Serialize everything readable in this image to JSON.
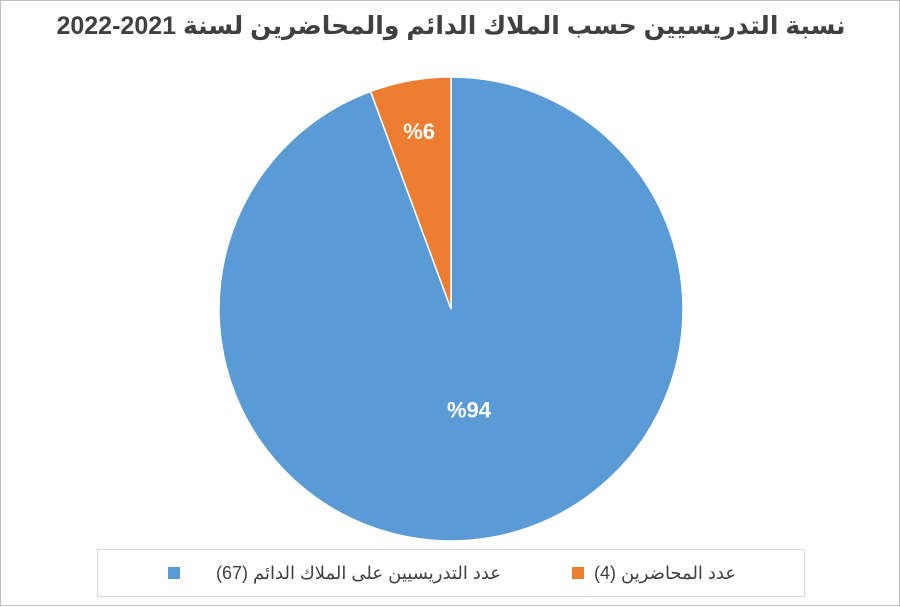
{
  "chart_data": {
    "type": "pie",
    "title": "نسبة التدريسيين حسب الملاك الدائم والمحاضرين لسنة 2021-2022",
    "series": [
      {
        "name": "",
        "slices": [
          {
            "label": "عدد التدريسيين على الملاك الدائم (67)",
            "value": 67,
            "percent_label": "%94",
            "color": "#5b9bd5"
          },
          {
            "label": "عدد المحاضرين (4)",
            "value": 4,
            "percent_label": "%6",
            "color": "#ed7d31"
          }
        ]
      }
    ],
    "legend_position": "bottom"
  }
}
